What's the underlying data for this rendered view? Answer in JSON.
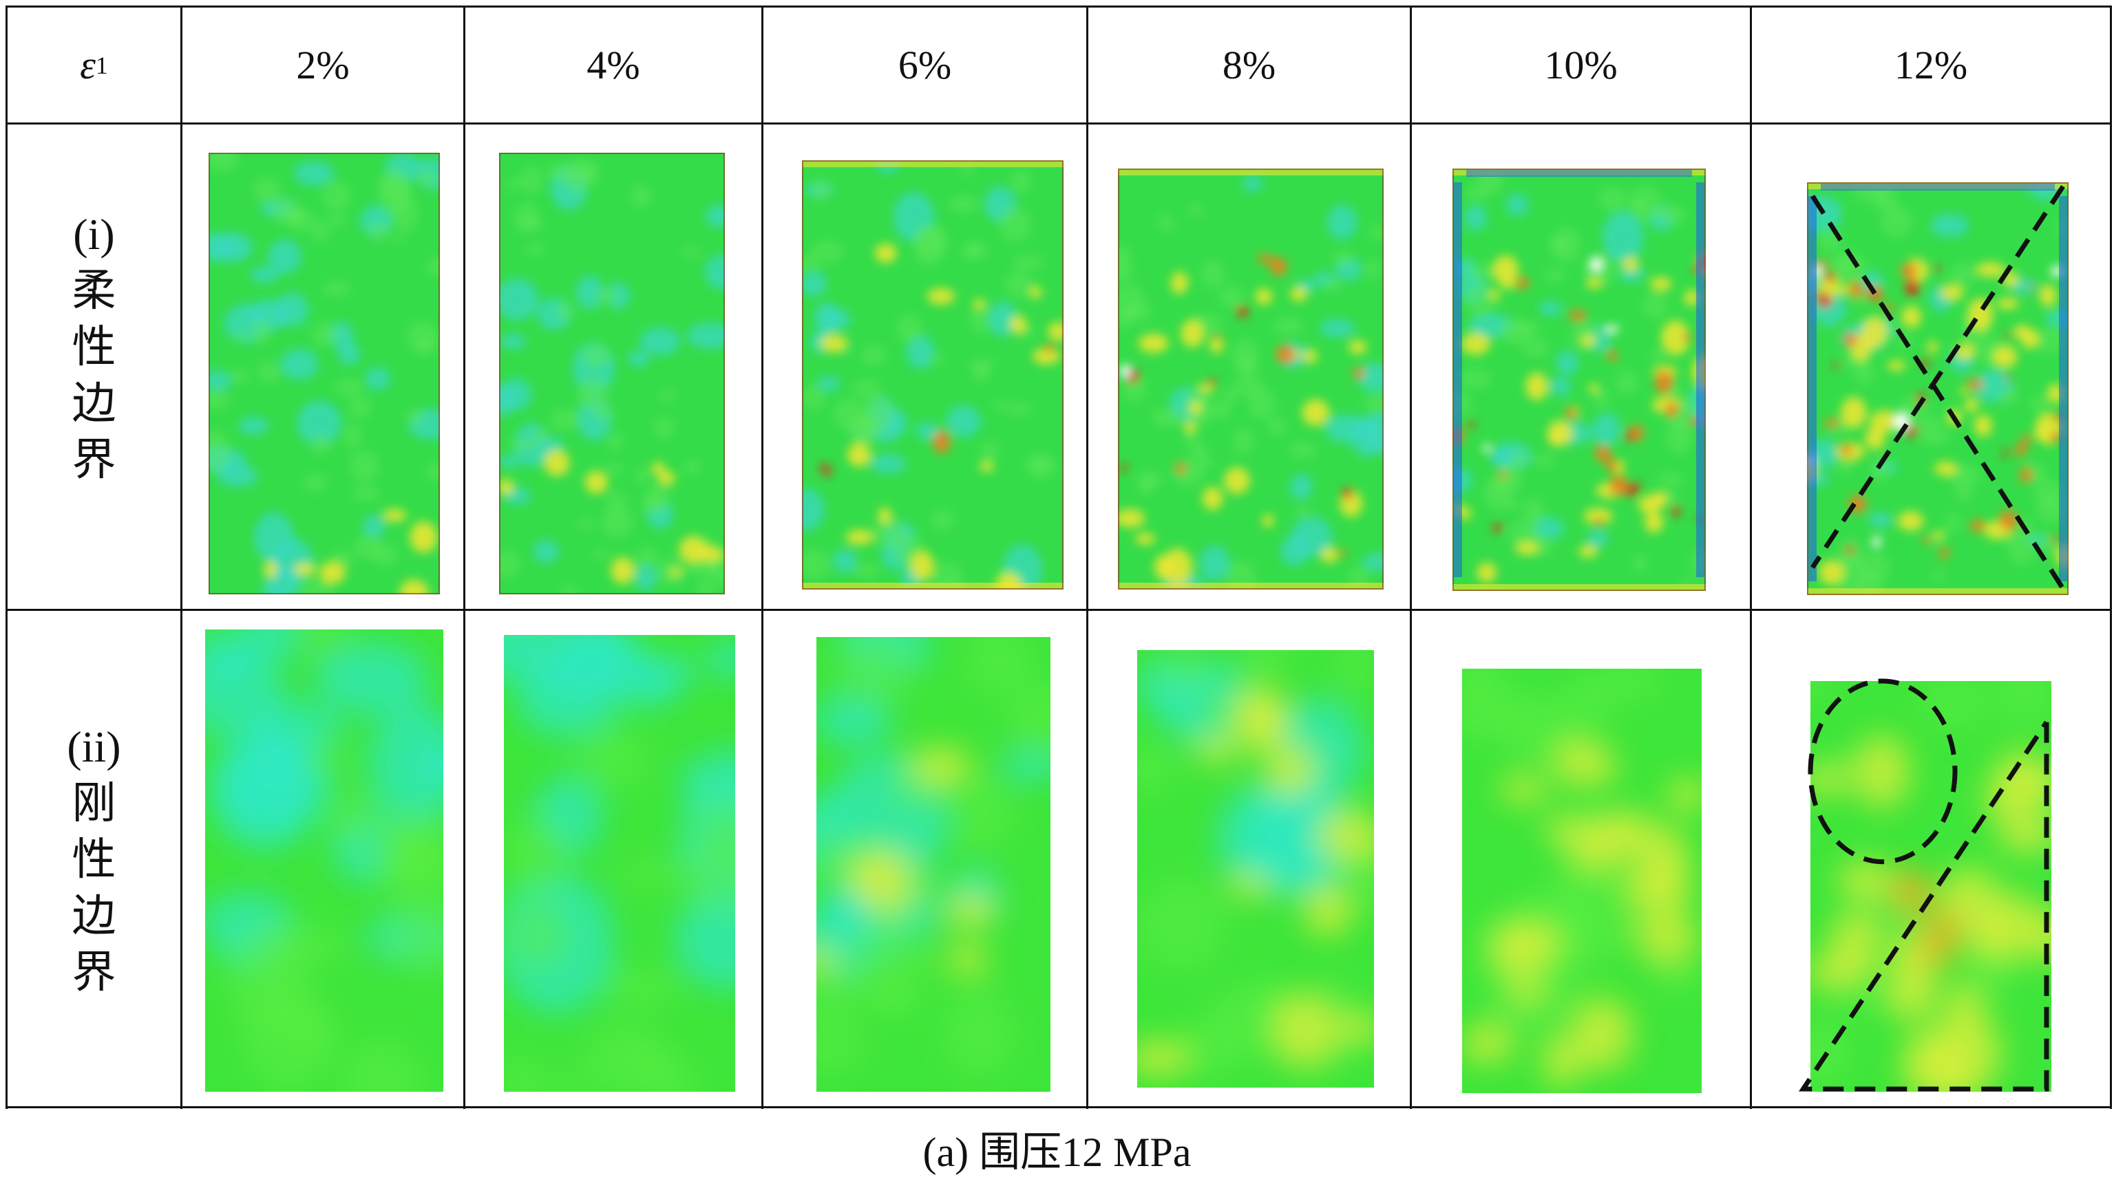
{
  "header": {
    "row_label_symbol": "ε",
    "row_label_subscript": "1",
    "strains": [
      "2%",
      "4%",
      "6%",
      "8%",
      "10%",
      "12%"
    ]
  },
  "rows": [
    {
      "index": "(i)",
      "label_chars": [
        "柔",
        "性",
        "边",
        "界"
      ]
    },
    {
      "index": "(ii)",
      "label_chars": [
        "刚",
        "性",
        "边",
        "界"
      ]
    }
  ],
  "caption": "(a) 围压12 MPa",
  "colors": {
    "grid": "#111111",
    "rigid_green": "#3ee53a",
    "rigid_cyan": "#2fe8c8",
    "rigid_yellow": "#d8ef3c",
    "flexible_green": "#35dc4a",
    "flexible_cyan": "#3ad8c4",
    "hot_yellow": "#f2e632",
    "hot_red": "#e8261a",
    "cold_blue": "#1f5fe6",
    "annotation_line": "#111111"
  }
}
